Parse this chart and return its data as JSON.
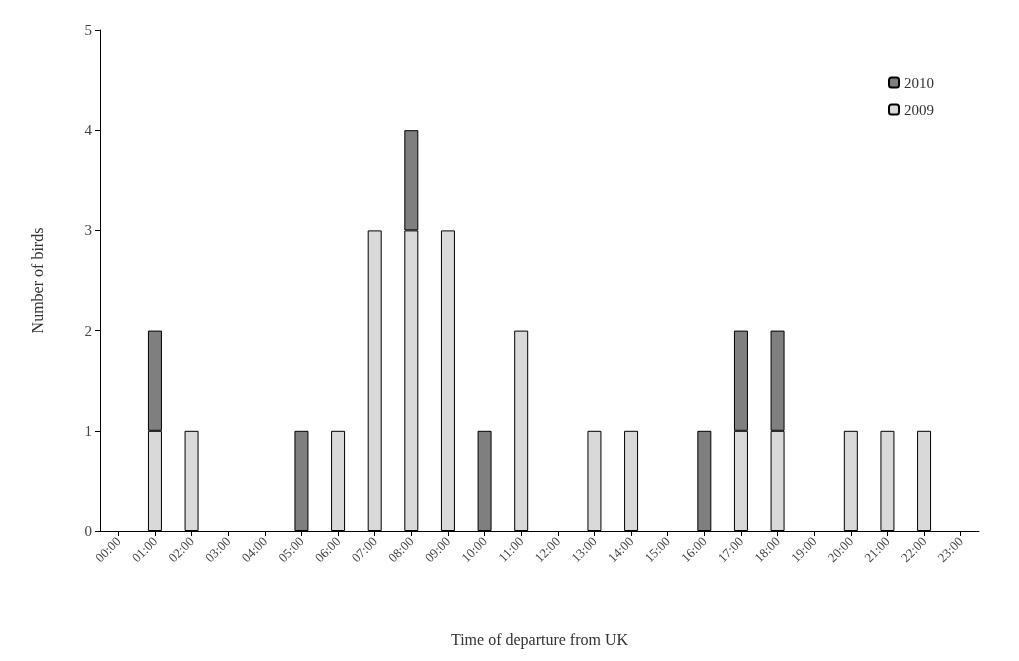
{
  "chart_data": {
    "type": "bar",
    "xlabel": "Time of departure from UK",
    "ylabel": "Number of birds",
    "categories": [
      "00:00",
      "01:00",
      "02:00",
      "03:00",
      "04:00",
      "05:00",
      "06:00",
      "07:00",
      "08:00",
      "09:00",
      "10:00",
      "11:00",
      "12:00",
      "13:00",
      "14:00",
      "15:00",
      "16:00",
      "17:00",
      "18:00",
      "19:00",
      "20:00",
      "21:00",
      "22:00",
      "23:00"
    ],
    "stacked": true,
    "series": [
      {
        "name": "2009",
        "color": "#d9d9d9",
        "values": [
          null,
          1,
          1,
          null,
          null,
          null,
          1,
          3,
          3,
          3,
          null,
          2,
          null,
          1,
          1,
          null,
          null,
          1,
          1,
          null,
          1,
          1,
          1,
          null
        ]
      },
      {
        "name": "2010",
        "color": "#7f7f7f",
        "values": [
          null,
          1,
          null,
          null,
          null,
          1,
          null,
          null,
          1,
          null,
          1,
          null,
          null,
          null,
          null,
          null,
          1,
          1,
          1,
          null,
          null,
          null,
          null,
          null
        ]
      }
    ],
    "ylim": [
      0,
      5
    ],
    "yticks": [
      0,
      1,
      2,
      3,
      4,
      5
    ],
    "grid": false,
    "legend": "top right"
  }
}
